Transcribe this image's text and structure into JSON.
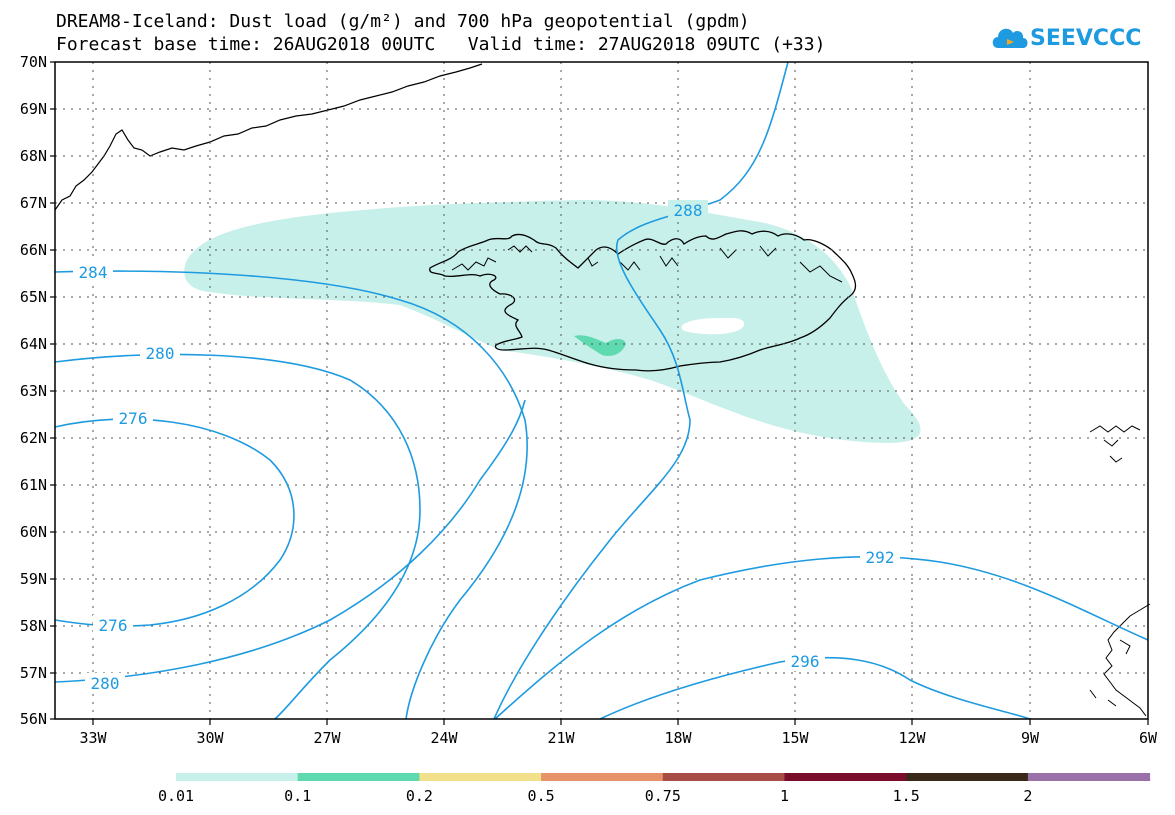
{
  "header": {
    "title_line1": "DREAM8-Iceland: Dust load (g/m²) and 700 hPa geopotential (gpdm)",
    "title_line2": "Forecast base time: 26AUG2018 00UTC   Valid time: 27AUG2018 09UTC (+33)"
  },
  "logo": {
    "text": "SEEVCCC",
    "color": "#1e9be0"
  },
  "map": {
    "lon_ticks": [
      "33W",
      "30W",
      "27W",
      "24W",
      "21W",
      "18W",
      "15W",
      "12W",
      "9W",
      "6W"
    ],
    "lat_ticks": [
      "70N",
      "69N",
      "68N",
      "67N",
      "66N",
      "65N",
      "64N",
      "63N",
      "62N",
      "61N",
      "60N",
      "59N",
      "58N",
      "57N",
      "56N"
    ],
    "contour_color": "#1e9be0",
    "contour_labels": [
      "288",
      "284",
      "280",
      "276",
      "276",
      "280",
      "292",
      "296"
    ]
  },
  "colorbar": {
    "colors": [
      "#c8f0ea",
      "#5fd9b0",
      "#f2e08a",
      "#e6936a",
      "#a84c45",
      "#7a0d2a",
      "#3a2818",
      "#9a70a8"
    ],
    "labels": [
      "0.01",
      "0.1",
      "0.2",
      "0.5",
      "0.75",
      "1",
      "1.5",
      "2"
    ]
  }
}
